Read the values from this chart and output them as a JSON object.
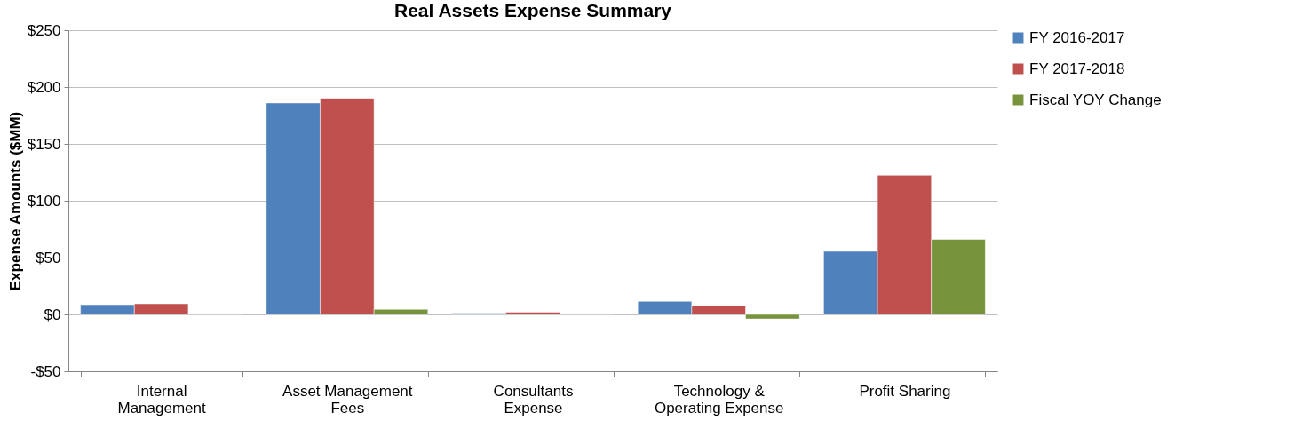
{
  "chart_data": {
    "type": "bar",
    "title": "Real Assets Expense Summary",
    "ylabel": "Expense Amounts ($MM)",
    "categories": [
      "Internal Management",
      "Asset Management Fees",
      "Consultants Expense",
      "Technology & Operating Expense",
      "Profit Sharing"
    ],
    "series": [
      {
        "name": "FY 2016-2017",
        "color": "#4f81bd",
        "values": [
          8.6,
          186,
          1.2,
          11.5,
          55.5
        ]
      },
      {
        "name": "FY 2017-2018",
        "color": "#c0504d",
        "values": [
          9.4,
          190,
          2,
          7.8,
          122.4
        ]
      },
      {
        "name": "Fiscal YOY Change",
        "color": "#77933c",
        "values": [
          0.8,
          4.5,
          0.8,
          -4,
          66
        ]
      }
    ],
    "ylim": [
      -50,
      250
    ],
    "yticks": [
      {
        "value": -50,
        "label": "-$50"
      },
      {
        "value": 0,
        "label": "$0"
      },
      {
        "value": 50,
        "label": "$50"
      },
      {
        "value": 100,
        "label": "$100"
      },
      {
        "value": 150,
        "label": "$150"
      },
      {
        "value": 200,
        "label": "$200"
      },
      {
        "value": 250,
        "label": "$250"
      }
    ],
    "grid": "y",
    "legend": "right"
  }
}
